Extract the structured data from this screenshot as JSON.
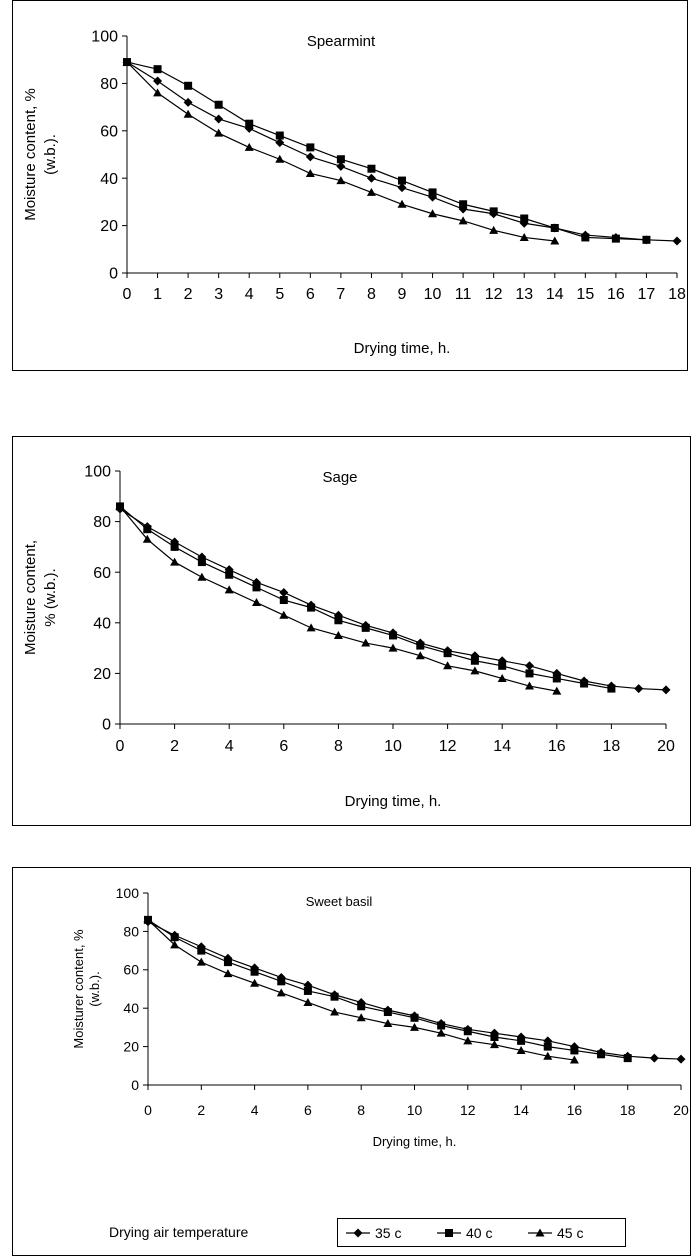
{
  "chart_data": [
    {
      "type": "line",
      "title": "Spearmint",
      "xlabel": "Drying time, h.",
      "ylabel": "Moisture content, % (w.b.).",
      "ylabel_lines": [
        "Moisture content, %",
        "(w.b.)."
      ],
      "xlim": [
        0,
        18
      ],
      "ylim": [
        0,
        100
      ],
      "xticks": [
        0,
        1,
        2,
        3,
        4,
        5,
        6,
        7,
        8,
        9,
        10,
        11,
        12,
        13,
        14,
        15,
        16,
        17,
        18
      ],
      "yticks": [
        0,
        20,
        40,
        60,
        80,
        100
      ],
      "grid": false,
      "series": [
        {
          "name": "35 c",
          "marker": "diamond",
          "x": [
            0,
            1,
            2,
            3,
            4,
            5,
            6,
            7,
            8,
            9,
            10,
            11,
            12,
            13,
            14,
            15,
            16,
            17,
            18
          ],
          "y": [
            89,
            81,
            72,
            65,
            61,
            55,
            49,
            45,
            40,
            36,
            32,
            27,
            25,
            21,
            19,
            16,
            15,
            14,
            13.5
          ]
        },
        {
          "name": "40 c",
          "marker": "square",
          "x": [
            0,
            1,
            2,
            3,
            4,
            5,
            6,
            7,
            8,
            9,
            10,
            11,
            12,
            13,
            14,
            15,
            16,
            17
          ],
          "y": [
            89,
            86,
            79,
            71,
            63,
            58,
            53,
            48,
            44,
            39,
            34,
            29,
            26,
            23,
            19,
            15,
            14.5,
            14
          ]
        },
        {
          "name": "45 c",
          "marker": "triangle",
          "x": [
            0,
            1,
            2,
            3,
            4,
            5,
            6,
            7,
            8,
            9,
            10,
            11,
            12,
            13,
            14
          ],
          "y": [
            89,
            76,
            67,
            59,
            53,
            48,
            42,
            39,
            34,
            29,
            25,
            22,
            18,
            15,
            13.5
          ]
        }
      ]
    },
    {
      "type": "line",
      "title": "Sage",
      "xlabel": "Drying time, h.",
      "ylabel": "Moisture content, % (w.b.).",
      "ylabel_lines": [
        "Moisture content,",
        "% (w.b.)."
      ],
      "xlim": [
        0,
        20
      ],
      "ylim": [
        0,
        100
      ],
      "xticks": [
        0,
        2,
        4,
        6,
        8,
        10,
        12,
        14,
        16,
        18,
        20
      ],
      "yticks": [
        0,
        20,
        40,
        60,
        80,
        100
      ],
      "grid": false,
      "series": [
        {
          "name": "35 c",
          "marker": "diamond",
          "x": [
            0,
            1,
            2,
            3,
            4,
            5,
            6,
            7,
            8,
            9,
            10,
            11,
            12,
            13,
            14,
            15,
            16,
            17,
            18,
            19,
            20
          ],
          "y": [
            85,
            78,
            72,
            66,
            61,
            56,
            52,
            47,
            43,
            39,
            36,
            32,
            29,
            27,
            25,
            23,
            20,
            17,
            15,
            14,
            13.5
          ]
        },
        {
          "name": "40 c",
          "marker": "square",
          "x": [
            0,
            1,
            2,
            3,
            4,
            5,
            6,
            7,
            8,
            9,
            10,
            11,
            12,
            13,
            14,
            15,
            16,
            17,
            18
          ],
          "y": [
            86,
            77,
            70,
            64,
            59,
            54,
            49,
            46,
            41,
            38,
            35,
            31,
            28,
            25,
            23,
            20,
            18,
            16,
            14
          ]
        },
        {
          "name": "45 c",
          "marker": "triangle",
          "x": [
            0,
            1,
            2,
            3,
            4,
            5,
            6,
            7,
            8,
            9,
            10,
            11,
            12,
            13,
            14,
            15,
            16
          ],
          "y": [
            86,
            73,
            64,
            58,
            53,
            48,
            43,
            38,
            35,
            32,
            30,
            27,
            23,
            21,
            18,
            15,
            13
          ]
        }
      ]
    },
    {
      "type": "line",
      "title": "Sweet basil",
      "xlabel": "Drying time, h.",
      "ylabel": "Moisturer content, % (w.b.).",
      "ylabel_lines": [
        "Moisturer content, %",
        "(w.b.)."
      ],
      "xlim": [
        0,
        20
      ],
      "ylim": [
        0,
        100
      ],
      "xticks": [
        0,
        2,
        4,
        6,
        8,
        10,
        12,
        14,
        16,
        18,
        20
      ],
      "yticks": [
        0,
        20,
        40,
        60,
        80,
        100
      ],
      "grid": false,
      "series": [
        {
          "name": "35 c",
          "marker": "diamond",
          "x": [
            0,
            1,
            2,
            3,
            4,
            5,
            6,
            7,
            8,
            9,
            10,
            11,
            12,
            13,
            14,
            15,
            16,
            17,
            18,
            19,
            20
          ],
          "y": [
            85,
            78,
            72,
            66,
            61,
            56,
            52,
            47,
            43,
            39,
            36,
            32,
            29,
            27,
            25,
            23,
            20,
            17,
            15,
            14,
            13.5
          ]
        },
        {
          "name": "40 c",
          "marker": "square",
          "x": [
            0,
            1,
            2,
            3,
            4,
            5,
            6,
            7,
            8,
            9,
            10,
            11,
            12,
            13,
            14,
            15,
            16,
            17,
            18
          ],
          "y": [
            86,
            77,
            70,
            64,
            59,
            54,
            49,
            46,
            41,
            38,
            35,
            31,
            28,
            25,
            23,
            20,
            18,
            16,
            14
          ]
        },
        {
          "name": "45 c",
          "marker": "triangle",
          "x": [
            0,
            1,
            2,
            3,
            4,
            5,
            6,
            7,
            8,
            9,
            10,
            11,
            12,
            13,
            14,
            15,
            16
          ],
          "y": [
            86,
            73,
            64,
            58,
            53,
            48,
            43,
            38,
            35,
            32,
            30,
            27,
            23,
            21,
            18,
            15,
            13
          ]
        }
      ]
    }
  ],
  "legend": {
    "title": "Drying air temperature",
    "entries": [
      {
        "label": "35 c",
        "marker": "diamond"
      },
      {
        "label": "40 c",
        "marker": "square"
      },
      {
        "label": "45 c",
        "marker": "triangle"
      }
    ],
    "placement": "bottom"
  }
}
